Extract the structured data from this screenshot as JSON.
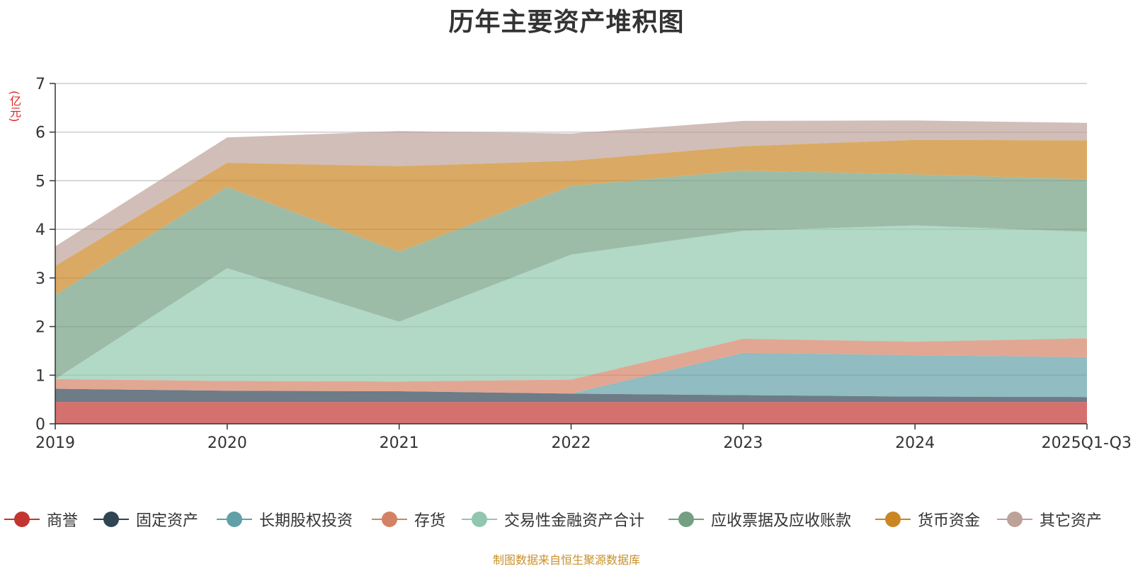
{
  "title": "历年主要资产堆积图",
  "unit": "(亿元)",
  "source": "制图数据来自恒生聚源数据库",
  "chart_data": {
    "type": "area",
    "stacked": true,
    "title": "历年主要资产堆积图",
    "xlabel": "",
    "ylabel": "(亿元)",
    "ylim": [
      0,
      7
    ],
    "yticks": [
      0,
      1,
      2,
      3,
      4,
      5,
      6,
      7
    ],
    "grid": true,
    "legend_position": "bottom",
    "categories": [
      "2019",
      "2020",
      "2021",
      "2022",
      "2023",
      "2024",
      "2025Q1-Q3"
    ],
    "series": [
      {
        "name": "商誉",
        "color": "#c23531",
        "values": [
          0.45,
          0.45,
          0.45,
          0.45,
          0.45,
          0.45,
          0.45
        ]
      },
      {
        "name": "固定资产",
        "color": "#2f4554",
        "values": [
          0.27,
          0.23,
          0.22,
          0.17,
          0.14,
          0.11,
          0.1
        ]
      },
      {
        "name": "长期股权投资",
        "color": "#61a0a8",
        "values": [
          0.0,
          0.0,
          0.0,
          0.0,
          0.87,
          0.85,
          0.82
        ]
      },
      {
        "name": "存货",
        "color": "#d48265",
        "values": [
          0.2,
          0.2,
          0.2,
          0.29,
          0.29,
          0.28,
          0.39
        ]
      },
      {
        "name": "交易性金融资产合计",
        "color": "#91c7ae",
        "values": [
          0.0,
          2.32,
          1.23,
          2.57,
          2.22,
          2.39,
          2.19
        ]
      },
      {
        "name": "应收票据及应收账款",
        "color": "#749f83",
        "values": [
          1.73,
          1.67,
          1.44,
          1.41,
          1.24,
          1.05,
          1.08
        ]
      },
      {
        "name": "货币资金",
        "color": "#ca8622",
        "values": [
          0.6,
          0.5,
          1.76,
          0.52,
          0.5,
          0.71,
          0.8
        ]
      },
      {
        "name": "其它资产",
        "color": "#bda29a",
        "values": [
          0.4,
          0.52,
          0.72,
          0.56,
          0.52,
          0.4,
          0.36
        ]
      }
    ]
  }
}
